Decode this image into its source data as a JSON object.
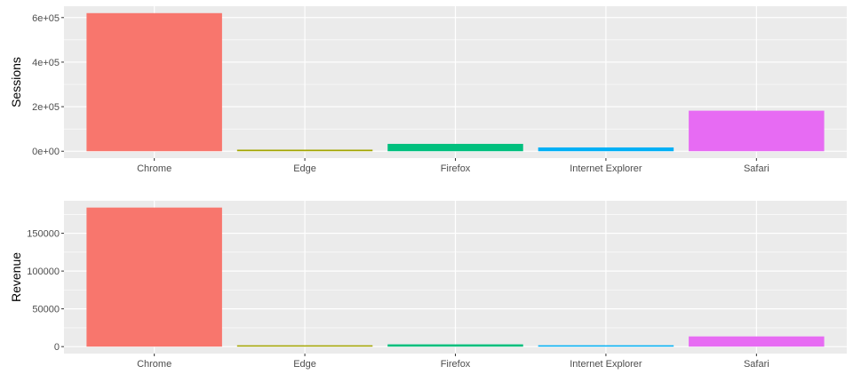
{
  "chart_data": [
    {
      "type": "bar",
      "title": "",
      "xlabel": "",
      "ylabel": "Sessions",
      "categories": [
        "Chrome",
        "Edge",
        "Firefox",
        "Internet Explorer",
        "Safari"
      ],
      "values": [
        620000,
        7000,
        33000,
        17000,
        182000
      ],
      "ylim": [
        -31000,
        651000
      ],
      "yticks": [
        0,
        200000,
        400000,
        600000
      ],
      "ytick_labels": [
        "0e+00",
        "2e+05",
        "4e+05",
        "6e+05"
      ],
      "grid": true,
      "legend": "none",
      "colors": [
        "#F8766D",
        "#A3A500",
        "#00BF7D",
        "#00B0F6",
        "#E76BF3"
      ]
    },
    {
      "type": "bar",
      "title": "",
      "xlabel": "",
      "ylabel": "Revenue",
      "categories": [
        "Chrome",
        "Edge",
        "Firefox",
        "Internet Explorer",
        "Safari"
      ],
      "values": [
        184000,
        600,
        3000,
        1500,
        13500
      ],
      "ylim": [
        -9200,
        193000
      ],
      "yticks": [
        0,
        50000,
        100000,
        150000
      ],
      "ytick_labels": [
        "0",
        "50000",
        "100000",
        "150000"
      ],
      "grid": true,
      "legend": "none",
      "colors": [
        "#F8766D",
        "#A3A500",
        "#00BF7D",
        "#00B0F6",
        "#E76BF3"
      ]
    }
  ]
}
